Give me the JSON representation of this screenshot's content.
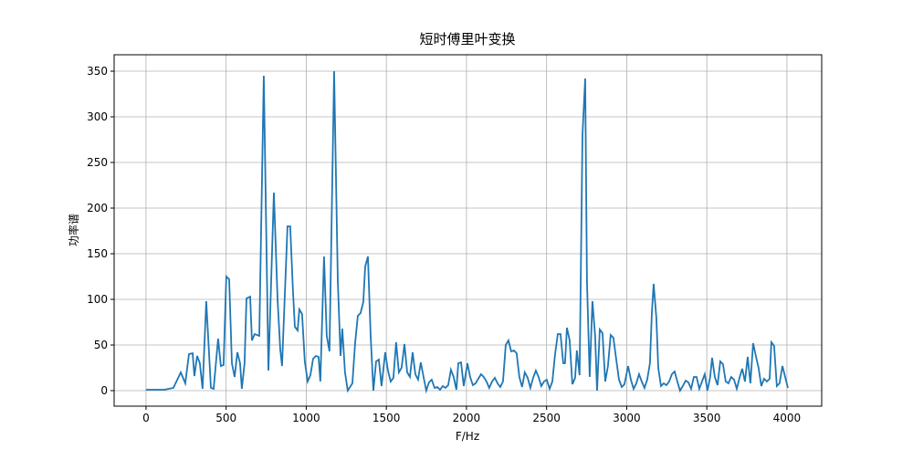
{
  "chart_data": {
    "type": "line",
    "title": "短时傅里叶变换",
    "x_label": "F/Hz",
    "y_label": "功率谱",
    "color": "#1f77b4",
    "grid": true,
    "xlim": [
      -199,
      4217
    ],
    "ylim": [
      -17,
      368
    ],
    "xticks": [
      0,
      500,
      1000,
      1500,
      2000,
      2500,
      3000,
      3500,
      4000
    ],
    "yticks": [
      0,
      50,
      100,
      150,
      200,
      250,
      300,
      350
    ],
    "x": [
      0,
      57,
      114,
      171,
      217,
      245,
      268,
      291,
      302,
      319,
      336,
      353,
      376,
      405,
      422,
      450,
      467,
      484,
      501,
      519,
      536,
      553,
      570,
      587,
      598,
      615,
      627,
      650,
      661,
      678,
      707,
      735,
      764,
      798,
      821,
      838,
      849,
      883,
      900,
      917,
      929,
      946,
      957,
      974,
      991,
      1009,
      1026,
      1043,
      1060,
      1077,
      1088,
      1111,
      1128,
      1145,
      1174,
      1197,
      1214,
      1225,
      1242,
      1259,
      1288,
      1305,
      1322,
      1339,
      1356,
      1368,
      1385,
      1402,
      1419,
      1436,
      1453,
      1470,
      1493,
      1510,
      1527,
      1544,
      1561,
      1578,
      1595,
      1613,
      1630,
      1647,
      1664,
      1681,
      1698,
      1715,
      1732,
      1749,
      1766,
      1783,
      1801,
      1818,
      1835,
      1852,
      1869,
      1886,
      1903,
      1920,
      1937,
      1949,
      1966,
      1983,
      2006,
      2023,
      2040,
      2057,
      2074,
      2091,
      2108,
      2125,
      2142,
      2160,
      2177,
      2194,
      2211,
      2228,
      2245,
      2262,
      2279,
      2296,
      2313,
      2330,
      2347,
      2364,
      2382,
      2399,
      2416,
      2433,
      2450,
      2467,
      2484,
      2501,
      2519,
      2536,
      2553,
      2570,
      2587,
      2604,
      2615,
      2627,
      2644,
      2661,
      2678,
      2689,
      2706,
      2724,
      2741,
      2752,
      2769,
      2786,
      2803,
      2815,
      2832,
      2849,
      2866,
      2883,
      2900,
      2917,
      2934,
      2952,
      2969,
      2986,
      3009,
      3026,
      3043,
      3060,
      3077,
      3094,
      3111,
      3128,
      3145,
      3157,
      3168,
      3185,
      3197,
      3214,
      3231,
      3248,
      3265,
      3282,
      3299,
      3316,
      3333,
      3350,
      3368,
      3385,
      3402,
      3419,
      3436,
      3453,
      3470,
      3487,
      3504,
      3521,
      3533,
      3550,
      3567,
      3584,
      3601,
      3618,
      3635,
      3652,
      3670,
      3687,
      3704,
      3721,
      3738,
      3755,
      3772,
      3789,
      3806,
      3823,
      3840,
      3857,
      3875,
      3892,
      3903,
      3920,
      3937,
      3954,
      3972,
      3989,
      4006
    ],
    "values": [
      1,
      1,
      1,
      3,
      20,
      8,
      40,
      41,
      16,
      38,
      30,
      2,
      98,
      3,
      2,
      57,
      27,
      28,
      125,
      122,
      30,
      15,
      42,
      30,
      2,
      30,
      101,
      103,
      55,
      62,
      60,
      345,
      22,
      217,
      100,
      45,
      27,
      180,
      180,
      110,
      70,
      66,
      89,
      84,
      32,
      10,
      17,
      35,
      38,
      37,
      10,
      147,
      60,
      43,
      350,
      120,
      38,
      68,
      20,
      0,
      8,
      52,
      82,
      85,
      97,
      136,
      147,
      60,
      0,
      32,
      34,
      5,
      42,
      22,
      10,
      14,
      53,
      20,
      25,
      51,
      20,
      15,
      42,
      18,
      12,
      31,
      15,
      0,
      9,
      12,
      3,
      4,
      1,
      5,
      3,
      6,
      23,
      15,
      1,
      30,
      31,
      5,
      30,
      15,
      6,
      8,
      13,
      18,
      15,
      10,
      3,
      10,
      14,
      8,
      4,
      10,
      50,
      55,
      43,
      44,
      41,
      15,
      4,
      20,
      14,
      3,
      14,
      22,
      15,
      5,
      10,
      12,
      2,
      10,
      40,
      62,
      62,
      30,
      30,
      69,
      55,
      7,
      14,
      44,
      17,
      280,
      342,
      120,
      15,
      98,
      60,
      0,
      67,
      63,
      10,
      27,
      61,
      58,
      35,
      12,
      4,
      7,
      27,
      12,
      2,
      8,
      18,
      10,
      3,
      12,
      30,
      85,
      117,
      80,
      25,
      5,
      8,
      6,
      10,
      18,
      21,
      10,
      0,
      5,
      11,
      9,
      2,
      15,
      15,
      2,
      10,
      18,
      0,
      15,
      36,
      15,
      6,
      32,
      29,
      10,
      8,
      15,
      12,
      2,
      14,
      24,
      10,
      37,
      8,
      52,
      38,
      25,
      5,
      13,
      10,
      13,
      53,
      49,
      5,
      8,
      27,
      15,
      3
    ]
  }
}
